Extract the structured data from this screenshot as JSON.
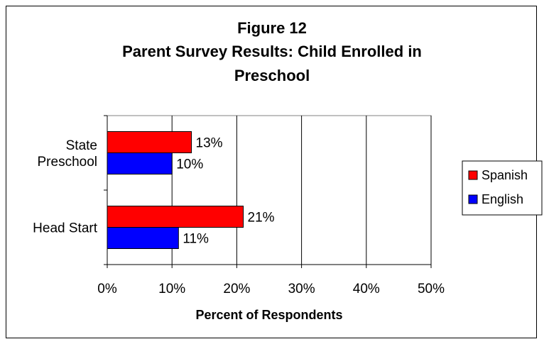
{
  "chart_data": {
    "type": "bar",
    "orientation": "horizontal",
    "title_lines": [
      "Figure 12",
      "Parent Survey Results: Child Enrolled in",
      "Preschool"
    ],
    "categories": [
      [
        "State",
        "Preschool"
      ],
      [
        "Head Start"
      ]
    ],
    "series": [
      {
        "name": "Spanish",
        "color": "#ff0000",
        "values": [
          13,
          21
        ]
      },
      {
        "name": "English",
        "color": "#0000ff",
        "values": [
          10,
          11
        ]
      }
    ],
    "data_labels": [
      [
        "13%",
        "10%"
      ],
      [
        "21%",
        "11%"
      ]
    ],
    "xlim": [
      0,
      50
    ],
    "xticks": [
      0,
      10,
      20,
      30,
      40,
      50
    ],
    "xtick_labels": [
      "0%",
      "10%",
      "20%",
      "30%",
      "40%",
      "50%"
    ],
    "xlabel": "Percent of Respondents",
    "ylabel": "",
    "grid": "vertical",
    "legend_position": "right"
  }
}
